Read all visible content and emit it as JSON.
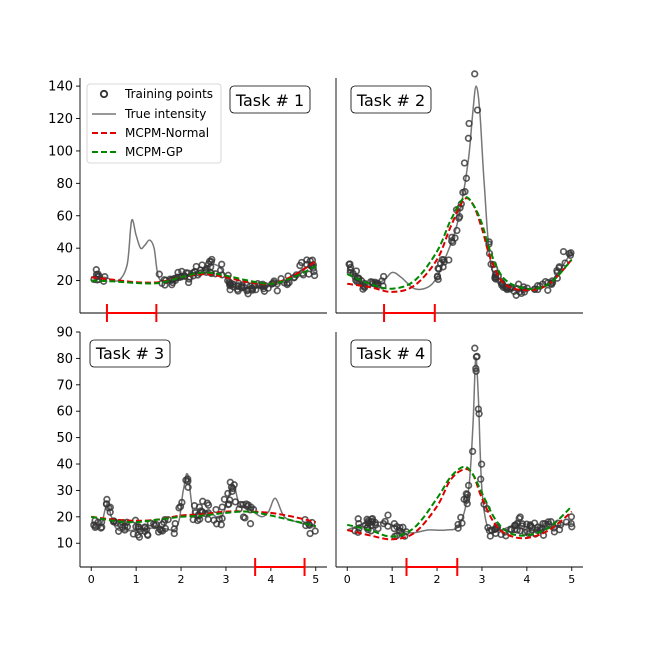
{
  "chart_data": {
    "type": "line",
    "legend": {
      "placement": "top-left of Task # 1 panel",
      "entries": [
        {
          "key": "training",
          "label": "Training points",
          "color": "#333333"
        },
        {
          "key": "true",
          "label": "True intensity",
          "color": "#777777"
        },
        {
          "key": "normal",
          "label": "MCPM-Normal",
          "color": "#dd0000"
        },
        {
          "key": "gp",
          "label": "MCPM-GP",
          "color": "#008800"
        }
      ]
    },
    "xlim": [
      -0.25,
      5.25
    ],
    "x_ticks": [
      "0",
      "1",
      "2",
      "3",
      "4",
      "5"
    ],
    "top_row": {
      "ylim": [
        0,
        145
      ],
      "y_ticks": [
        "20",
        "40",
        "60",
        "80",
        "100",
        "120",
        "140"
      ]
    },
    "bottom_row": {
      "ylim": [
        1,
        90
      ],
      "y_ticks": [
        "10",
        "20",
        "30",
        "40",
        "50",
        "60",
        "70",
        "80",
        "90"
      ]
    },
    "panels": [
      {
        "title": "Task # 1",
        "row": "top",
        "col": 0,
        "missing_interval": [
          0.35,
          1.45
        ],
        "true_intensity": {
          "x": [
            0,
            0.3,
            0.6,
            0.8,
            0.9,
            1.0,
            1.1,
            1.2,
            1.3,
            1.4,
            1.5,
            1.7,
            2.0,
            2.4,
            2.7,
            2.9,
            3.1,
            3.5,
            4.0,
            4.4,
            4.7,
            5.0
          ],
          "y": [
            22,
            22,
            20,
            30,
            57,
            48,
            40,
            42,
            45,
            40,
            22,
            20,
            22,
            26,
            30,
            27,
            17,
            15,
            17,
            20,
            27,
            30
          ]
        },
        "mcpm_normal": {
          "x": [
            0,
            0.5,
            1.0,
            1.5,
            2.0,
            2.5,
            3.0,
            3.5,
            4.0,
            4.5,
            5.0
          ],
          "y": [
            22,
            20.5,
            19,
            19,
            22,
            24,
            22,
            19,
            18,
            23,
            32
          ]
        },
        "mcpm_gp": {
          "x": [
            0,
            0.5,
            1.0,
            1.5,
            2.0,
            2.5,
            3.0,
            3.5,
            4.0,
            4.5,
            5.0
          ],
          "y": [
            20,
            19.5,
            18.5,
            18.5,
            22,
            25,
            23,
            20,
            18,
            22,
            29
          ]
        },
        "points_seed": 11
      },
      {
        "title": "Task # 2",
        "row": "top",
        "col": 1,
        "missing_interval": [
          0.82,
          1.95
        ],
        "true_intensity": {
          "x": [
            0,
            0.4,
            0.8,
            1.0,
            1.2,
            1.5,
            1.8,
            2.0,
            2.2,
            2.4,
            2.55,
            2.7,
            2.8,
            2.87,
            2.95,
            3.05,
            3.2,
            3.5,
            4.0,
            4.5,
            5.0
          ],
          "y": [
            28,
            17,
            20,
            25,
            22,
            15,
            16,
            22,
            35,
            50,
            68,
            95,
            125,
            140,
            125,
            80,
            30,
            15,
            15,
            18,
            38
          ]
        },
        "mcpm_normal": {
          "x": [
            0,
            0.5,
            1.0,
            1.5,
            2.0,
            2.3,
            2.6,
            2.8,
            3.0,
            3.2,
            3.5,
            4.0,
            4.5,
            5.0
          ],
          "y": [
            18,
            16,
            13,
            17,
            33,
            53,
            70,
            67,
            52,
            33,
            18,
            14,
            18,
            33
          ]
        },
        "mcpm_gp": {
          "x": [
            0,
            0.5,
            1.0,
            1.5,
            2.0,
            2.3,
            2.6,
            2.8,
            3.0,
            3.2,
            3.5,
            4.0,
            4.5,
            5.0
          ],
          "y": [
            24,
            18,
            15,
            20,
            38,
            57,
            71,
            67,
            55,
            37,
            21,
            15,
            18,
            33
          ]
        },
        "points_seed": 23
      },
      {
        "title": "Task # 3",
        "row": "bottom",
        "col": 0,
        "missing_interval": [
          3.65,
          4.75
        ],
        "true_intensity": {
          "x": [
            0,
            0.2,
            0.35,
            0.45,
            0.6,
            1.0,
            1.5,
            1.9,
            2.05,
            2.15,
            2.3,
            2.6,
            2.9,
            3.15,
            3.3,
            3.6,
            3.8,
            3.95,
            4.1,
            4.3,
            4.6,
            5.0
          ],
          "y": [
            18,
            16,
            25,
            20,
            15,
            15,
            16,
            16,
            30,
            36,
            20,
            22,
            20,
            32,
            25,
            22,
            20,
            22,
            27,
            20,
            18,
            16
          ]
        },
        "mcpm_normal": {
          "x": [
            0,
            0.5,
            1.0,
            1.5,
            2.0,
            2.5,
            3.0,
            3.5,
            4.0,
            4.5,
            5.0
          ],
          "y": [
            20,
            19,
            18.5,
            19,
            20.5,
            21,
            22,
            22,
            21.5,
            20,
            18
          ]
        },
        "mcpm_gp": {
          "x": [
            0,
            0.5,
            1.0,
            1.5,
            2.0,
            2.5,
            3.0,
            3.5,
            4.0,
            4.5,
            5.0
          ],
          "y": [
            20,
            18.5,
            18,
            19,
            20,
            20.5,
            21.5,
            22,
            20.5,
            18.5,
            16.5
          ]
        },
        "points_seed": 37
      },
      {
        "title": "Task # 4",
        "row": "bottom",
        "col": 1,
        "missing_interval": [
          1.32,
          2.45
        ],
        "true_intensity": {
          "x": [
            0,
            0.5,
            1.0,
            1.4,
            1.8,
            2.2,
            2.5,
            2.7,
            2.8,
            2.86,
            2.92,
            3.0,
            3.15,
            3.4,
            3.8,
            4.2,
            4.6,
            5.0
          ],
          "y": [
            15,
            18,
            17,
            14,
            15,
            15,
            17,
            30,
            55,
            80,
            65,
            30,
            15,
            15,
            17,
            15,
            16,
            18
          ]
        },
        "mcpm_normal": {
          "x": [
            0,
            0.5,
            1.0,
            1.5,
            2.0,
            2.3,
            2.6,
            2.8,
            3.0,
            3.3,
            3.6,
            4.0,
            4.5,
            5.0
          ],
          "y": [
            15,
            13,
            11.5,
            14,
            24,
            34,
            38,
            36,
            27,
            17,
            13,
            12,
            15,
            22
          ]
        },
        "mcpm_gp": {
          "x": [
            0,
            0.5,
            1.0,
            1.5,
            2.0,
            2.3,
            2.6,
            2.8,
            3.0,
            3.3,
            3.6,
            4.0,
            4.5,
            5.0
          ],
          "y": [
            17,
            15,
            12.5,
            16,
            27,
            35,
            39,
            36,
            29,
            19,
            14,
            13,
            16,
            24
          ]
        },
        "points_seed": 53
      }
    ]
  }
}
